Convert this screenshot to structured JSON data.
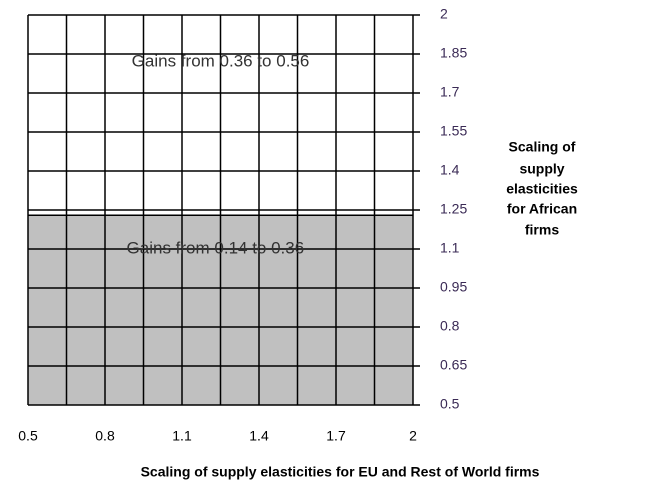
{
  "chart_data": {
    "type": "region",
    "x": [
      0.5,
      2
    ],
    "values": [
      1.23,
      1.23
    ],
    "fill_color": "#c0c0c0",
    "line_color": "#000000",
    "xlim": [
      0.5,
      2
    ],
    "ylim": [
      0.5,
      2
    ],
    "xticks": [
      0.5,
      0.8,
      1.1,
      1.4,
      1.7,
      2
    ],
    "yticks": [
      2,
      1.85,
      1.7,
      1.55,
      1.4,
      1.25,
      1.1,
      0.95,
      0.8,
      0.65,
      0.5
    ],
    "xgrid": [
      0.5,
      0.65,
      0.8,
      0.95,
      1.1,
      1.25,
      1.4,
      1.55,
      1.7,
      1.85,
      2
    ],
    "grid": true,
    "y_axis_side": "right",
    "annotations": [
      {
        "text": "Gains from 0.36 to 0.56",
        "x": 1.25,
        "y": 1.82
      },
      {
        "text": "Gains from 0.14 to 0.36",
        "x": 1.23,
        "y": 1.1
      }
    ],
    "xlabel": "Scaling of supply elasticities for EU and Rest of World firms",
    "ylabel": [
      "Scaling of",
      "supply",
      "elasticities",
      "for African",
      "firms"
    ]
  }
}
